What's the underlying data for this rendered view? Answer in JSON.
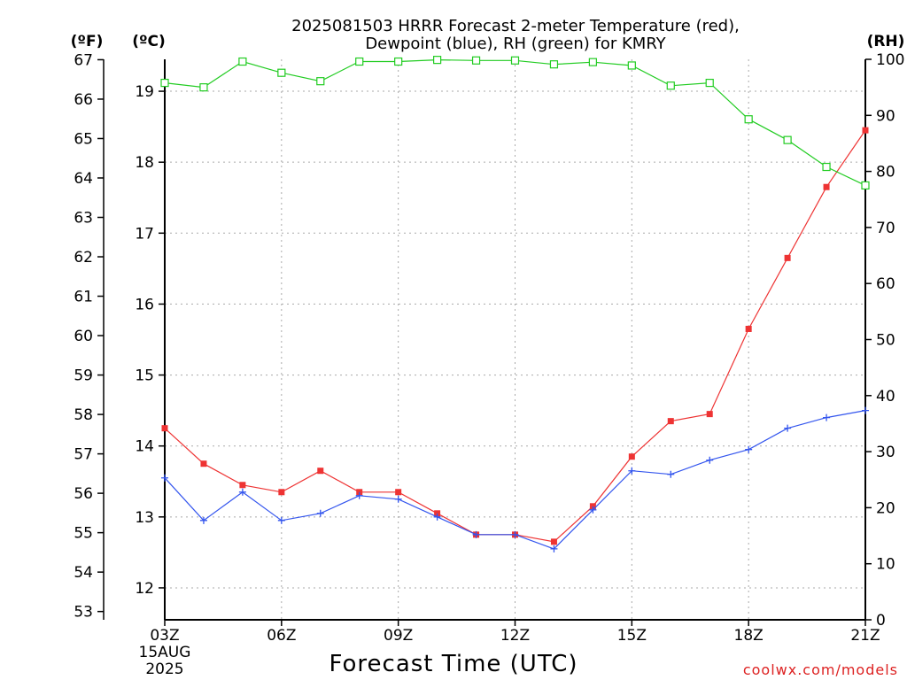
{
  "chart_data": {
    "type": "line",
    "title_line1": "2025081503 HRRR Forecast 2-meter Temperature (red),",
    "title_line2": "Dewpoint (blue), RH (green) for KMRY",
    "xlabel": "Forecast Time (UTC)",
    "credit": "coolwx.com/models",
    "unit_f": "(ºF)",
    "unit_c": "(ºC)",
    "unit_rh": "(RH)",
    "x_hours": [
      3,
      4,
      5,
      6,
      7,
      8,
      9,
      10,
      11,
      12,
      13,
      14,
      15,
      16,
      17,
      18,
      19,
      20,
      21
    ],
    "x_ticks": [
      {
        "hour": 3,
        "label": "03Z",
        "sub1": "15AUG",
        "sub2": "2025"
      },
      {
        "hour": 6,
        "label": "06Z"
      },
      {
        "hour": 9,
        "label": "09Z"
      },
      {
        "hour": 12,
        "label": "12Z"
      },
      {
        "hour": 15,
        "label": "15Z"
      },
      {
        "hour": 18,
        "label": "18Z"
      },
      {
        "hour": 21,
        "label": "21Z"
      }
    ],
    "xlim": [
      3,
      21
    ],
    "celsius_axis": {
      "ylim": [
        11.55,
        19.45
      ],
      "ticks": [
        12,
        13,
        14,
        15,
        16,
        17,
        18,
        19
      ]
    },
    "fahrenheit_axis": {
      "ticks": [
        53,
        54,
        55,
        56,
        57,
        58,
        59,
        60,
        61,
        62,
        63,
        64,
        65,
        66,
        67
      ]
    },
    "rh_axis": {
      "ylim": [
        0,
        100
      ],
      "ticks": [
        0,
        10,
        20,
        30,
        40,
        50,
        60,
        70,
        80,
        90,
        100
      ]
    },
    "grid": true,
    "series": [
      {
        "name": "Temperature",
        "color": "#ee3333",
        "marker": "filled-square",
        "axis": "celsius",
        "values": [
          14.25,
          13.75,
          13.45,
          13.35,
          13.65,
          13.35,
          13.35,
          13.05,
          12.75,
          12.75,
          12.65,
          13.15,
          13.85,
          14.35,
          14.45,
          15.65,
          16.65,
          17.65,
          18.45
        ]
      },
      {
        "name": "Dewpoint",
        "color": "#3355ee",
        "marker": "plus",
        "axis": "celsius",
        "values": [
          13.55,
          12.95,
          13.35,
          12.95,
          13.05,
          13.3,
          13.25,
          13.0,
          12.75,
          12.75,
          12.55,
          13.1,
          13.65,
          13.6,
          13.8,
          13.95,
          14.25,
          14.4,
          14.5
        ]
      },
      {
        "name": "RH",
        "color": "#22cc22",
        "marker": "open-square",
        "axis": "rh",
        "values": [
          95.8,
          95.0,
          99.6,
          97.6,
          96.1,
          99.6,
          99.6,
          99.9,
          99.8,
          99.8,
          99.1,
          99.5,
          98.9,
          95.3,
          95.8,
          89.3,
          85.6,
          80.8,
          77.5
        ]
      }
    ]
  }
}
